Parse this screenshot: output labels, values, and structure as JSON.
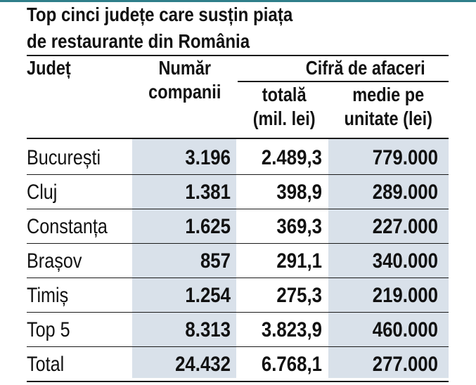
{
  "title": {
    "line1": "Top cinci județe care susțin piața",
    "line2": "de restaurante din România"
  },
  "header": {
    "judet": "Județ",
    "numar_line1": "Număr",
    "numar_line2": "companii",
    "cifra": "Cifră de afaceri",
    "totala_line1": "totală",
    "totala_line2": "(mil. lei)",
    "medie_line1": "medie pe",
    "medie_line2": "unitate (lei)"
  },
  "rows": [
    {
      "judet": "București",
      "companii": "3.196",
      "totala": "2.489,3",
      "medie": "779.000"
    },
    {
      "judet": "Cluj",
      "companii": "1.381",
      "totala": "398,9",
      "medie": "289.000"
    },
    {
      "judet": "Constanța",
      "companii": "1.625",
      "totala": "369,3",
      "medie": "227.000"
    },
    {
      "judet": "Brașov",
      "companii": "857",
      "totala": "291,1",
      "medie": "340.000"
    },
    {
      "judet": "Timiș",
      "companii": "1.254",
      "totala": "275,3",
      "medie": "219.000"
    },
    {
      "judet": "Top 5",
      "companii": "8.313",
      "totala": "3.823,9",
      "medie": "460.000"
    },
    {
      "judet": "Total",
      "companii": "24.432",
      "totala": "6.768,1",
      "medie": "277.000"
    }
  ],
  "colors": {
    "accent_rule": "#2f7f8a",
    "shade": "#d9e1ea",
    "text": "#111111"
  }
}
